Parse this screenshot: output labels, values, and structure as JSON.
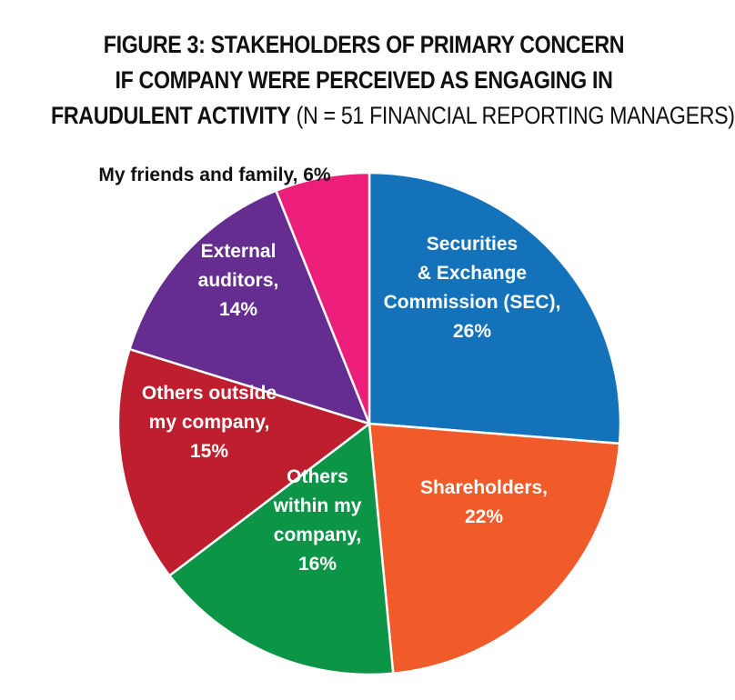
{
  "title": {
    "line1": "FIGURE 3: STAKEHOLDERS OF PRIMARY CONCERN",
    "line2": "IF COMPANY WERE PERCEIVED AS ENGAGING IN",
    "line3_bold": "FRAUDULENT ACTIVITY",
    "line3_normal": " (N = 51 FINANCIAL REPORTING MANAGERS)"
  },
  "chart_data": {
    "type": "pie",
    "unit": "%",
    "slices": [
      {
        "name": "Securities & Exchange Commission (SEC)",
        "value": 26,
        "color": "#1372b9",
        "label_lines": [
          "Securities",
          "& Exchange",
          "Commission (SEC),",
          "26%"
        ],
        "label_color": "#ffffff"
      },
      {
        "name": "Shareholders",
        "value": 22,
        "color": "#f15a29",
        "label_lines": [
          "Shareholders,",
          "22%"
        ],
        "label_color": "#ffffff"
      },
      {
        "name": "Others within my company",
        "value": 16,
        "color": "#0c9447",
        "label_lines": [
          "Others",
          "within my",
          "company,",
          "16%"
        ],
        "label_color": "#ffffff"
      },
      {
        "name": "Others outside my company",
        "value": 15,
        "color": "#be1e2d",
        "label_lines": [
          "Others outside",
          "my company,",
          "15%"
        ],
        "label_color": "#ffffff"
      },
      {
        "name": "External auditors",
        "value": 14,
        "color": "#662d91",
        "label_lines": [
          "External",
          "auditors,",
          "14%"
        ],
        "label_color": "#ffffff"
      },
      {
        "name": "My friends and family",
        "value": 6,
        "color": "#ec1e79",
        "label_lines": [
          "My friends and family, 6%"
        ],
        "label_color": "#111111"
      }
    ]
  }
}
